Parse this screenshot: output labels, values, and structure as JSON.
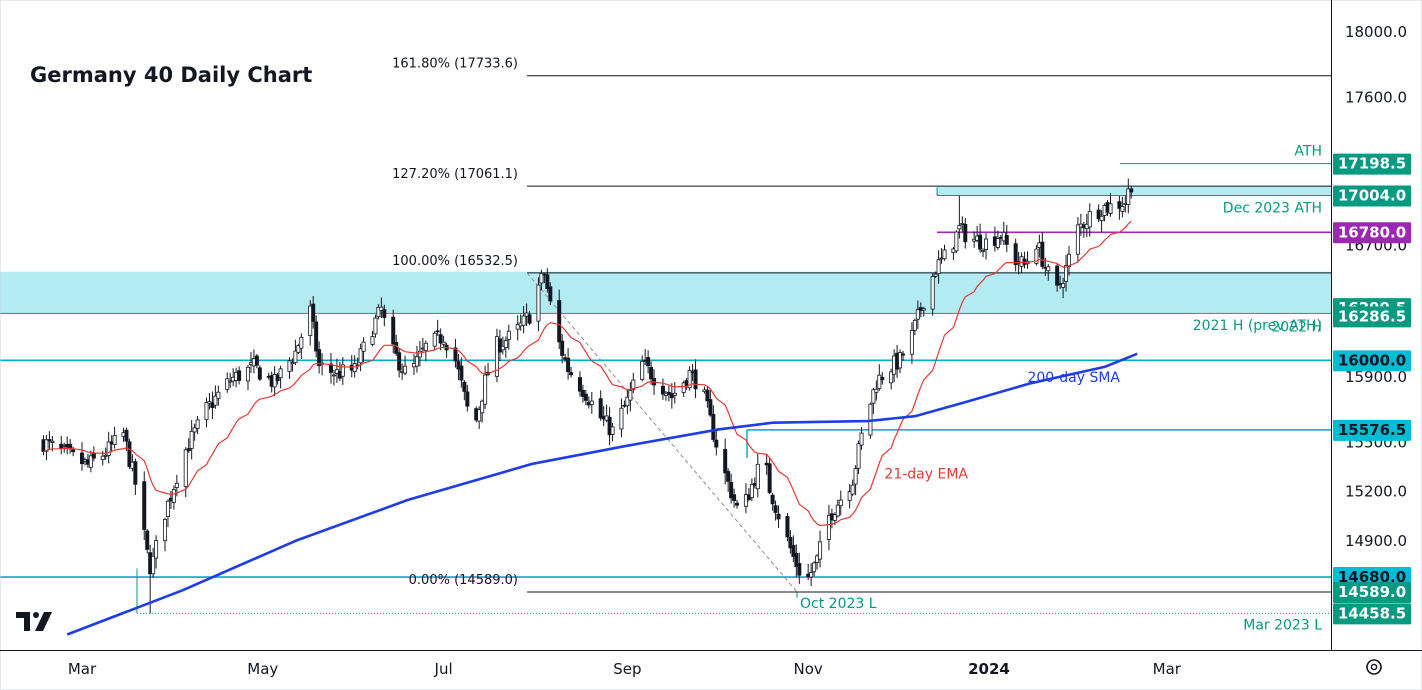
{
  "chart_data": {
    "type": "candlestick",
    "title": "Germany 40 Daily Chart",
    "y_range": [
      14330,
      18130
    ],
    "y_ticks": [
      {
        "value": 18000,
        "label": "18000.0"
      },
      {
        "value": 17600,
        "label": "17600.0"
      },
      {
        "value": 16700,
        "label": "16700.0"
      },
      {
        "value": 15900,
        "label": "15900.0"
      },
      {
        "value": 15500,
        "label": "15500.0"
      },
      {
        "value": 15200,
        "label": "15200.0"
      },
      {
        "value": 14900,
        "label": "14900.0"
      }
    ],
    "x_ticks": [
      {
        "label": "Mar",
        "bold": false,
        "day": 0
      },
      {
        "label": "May",
        "bold": false,
        "day": 61
      },
      {
        "label": "Jul",
        "bold": false,
        "day": 122
      },
      {
        "label": "Sep",
        "bold": false,
        "day": 184
      },
      {
        "label": "Nov",
        "bold": false,
        "day": 245
      },
      {
        "label": "2024",
        "bold": true,
        "day": 306
      },
      {
        "label": "Mar",
        "bold": false,
        "day": 366
      }
    ],
    "price_tags": [
      {
        "label": "17198.5",
        "value": 17198.5,
        "bg": "#089981",
        "fg": "#ffffff"
      },
      {
        "label": "17004.0",
        "value": 17004.0,
        "bg": "#089981",
        "fg": "#ffffff"
      },
      {
        "label": "16780.0",
        "value": 16780.0,
        "bg": "#9c27b0",
        "fg": "#ffffff"
      },
      {
        "label": "16299.5",
        "value": 16299.5,
        "bg": "#089981",
        "fg": "#ffffff"
      },
      {
        "label": "16286.5",
        "value": 16286.5,
        "bg": "#089981",
        "fg": "#ffffff"
      },
      {
        "label": "16000.0",
        "value": 16000.0,
        "bg": "#00bcd4",
        "fg": "#131722"
      },
      {
        "label": "15576.5",
        "value": 15576.5,
        "bg": "#00bcd4",
        "fg": "#131722"
      },
      {
        "label": "14680.0",
        "value": 14680.0,
        "bg": "#00bcd4",
        "fg": "#131722"
      },
      {
        "label": "14589.0",
        "value": 14589.0,
        "bg": "#089981",
        "fg": "#ffffff"
      },
      {
        "label": "14458.5",
        "value": 14458.5,
        "bg": "#089981",
        "fg": "#ffffff"
      }
    ],
    "fib_levels": [
      {
        "label": "161.80% (17733.6)",
        "value": 17733.6
      },
      {
        "label": "127.20% (17061.1)",
        "value": 17061.1
      },
      {
        "label": "100.00% (16532.5)",
        "value": 16532.5
      },
      {
        "label": "0.00% (14589.0)",
        "value": 14589.0
      }
    ],
    "zones": [
      {
        "from": 16290,
        "to": 16540,
        "color": "#b2ebf2"
      },
      {
        "from": 17005,
        "to": 17065,
        "color": "#b2ebf2"
      }
    ],
    "annotations": [
      {
        "text": "ATH",
        "color": "#089981"
      },
      {
        "text": "Dec 2023 ATH",
        "color": "#089981"
      },
      {
        "text": "2021 H (prev ATH)",
        "color": "#089981"
      },
      {
        "text": "2022 H",
        "color": "#089981"
      },
      {
        "text": "200-day SMA",
        "color": "#1e3de6"
      },
      {
        "text": "21-day EMA",
        "color": "#e53935"
      },
      {
        "text": "Oct 2023 L",
        "color": "#089981"
      },
      {
        "text": "Mar 2023 L",
        "color": "#089981"
      }
    ],
    "key_points": [
      {
        "day": -13,
        "close": 15500
      },
      {
        "day": 2,
        "close": 15360
      },
      {
        "day": 8,
        "close": 15440
      },
      {
        "day": 14,
        "close": 15550
      },
      {
        "day": 18,
        "close": 15250
      },
      {
        "day": 22,
        "close": 14820
      },
      {
        "day": 23,
        "close": 14700
      },
      {
        "day": 27,
        "close": 15020
      },
      {
        "day": 30,
        "close": 15180
      },
      {
        "day": 34,
        "close": 15420
      },
      {
        "day": 42,
        "close": 15700
      },
      {
        "day": 50,
        "close": 15880
      },
      {
        "day": 58,
        "close": 15960
      },
      {
        "day": 65,
        "close": 15860
      },
      {
        "day": 72,
        "close": 16050
      },
      {
        "day": 77,
        "close": 16300
      },
      {
        "day": 80,
        "close": 15960
      },
      {
        "day": 86,
        "close": 15920
      },
      {
        "day": 92,
        "close": 15940
      },
      {
        "day": 98,
        "close": 16200
      },
      {
        "day": 101,
        "close": 16310
      },
      {
        "day": 104,
        "close": 16080
      },
      {
        "day": 110,
        "close": 15900
      },
      {
        "day": 116,
        "close": 16080
      },
      {
        "day": 122,
        "close": 16150
      },
      {
        "day": 126,
        "close": 16000
      },
      {
        "day": 128,
        "close": 15850
      },
      {
        "day": 132,
        "close": 15560
      },
      {
        "day": 136,
        "close": 15870
      },
      {
        "day": 140,
        "close": 16090
      },
      {
        "day": 146,
        "close": 16160
      },
      {
        "day": 152,
        "close": 16300
      },
      {
        "day": 154,
        "close": 16450
      },
      {
        "day": 156,
        "close": 16530
      },
      {
        "day": 160,
        "close": 16150
      },
      {
        "day": 164,
        "close": 15950
      },
      {
        "day": 170,
        "close": 15800
      },
      {
        "day": 175,
        "close": 15650
      },
      {
        "day": 179,
        "close": 15570
      },
      {
        "day": 184,
        "close": 15750
      },
      {
        "day": 189,
        "close": 15980
      },
      {
        "day": 194,
        "close": 15880
      },
      {
        "day": 199,
        "close": 15780
      },
      {
        "day": 205,
        "close": 15920
      },
      {
        "day": 209,
        "close": 15840
      },
      {
        "day": 213,
        "close": 15560
      },
      {
        "day": 217,
        "close": 15300
      },
      {
        "day": 222,
        "close": 15050
      },
      {
        "day": 226,
        "close": 15240
      },
      {
        "day": 230,
        "close": 15420
      },
      {
        "day": 232,
        "close": 15220
      },
      {
        "day": 236,
        "close": 15010
      },
      {
        "day": 240,
        "close": 14800
      },
      {
        "day": 244,
        "close": 14640
      },
      {
        "day": 248,
        "close": 14780
      },
      {
        "day": 252,
        "close": 15050
      },
      {
        "day": 256,
        "close": 15160
      },
      {
        "day": 260,
        "close": 15280
      },
      {
        "day": 264,
        "close": 15620
      },
      {
        "day": 268,
        "close": 15870
      },
      {
        "day": 272,
        "close": 15950
      },
      {
        "day": 276,
        "close": 16000
      },
      {
        "day": 280,
        "close": 16150
      },
      {
        "day": 284,
        "close": 16370
      },
      {
        "day": 288,
        "close": 16560
      },
      {
        "day": 292,
        "close": 16650
      },
      {
        "day": 296,
        "close": 16800
      },
      {
        "day": 300,
        "close": 16740
      },
      {
        "day": 305,
        "close": 16720
      },
      {
        "day": 310,
        "close": 16770
      },
      {
        "day": 314,
        "close": 16620
      },
      {
        "day": 318,
        "close": 16580
      },
      {
        "day": 322,
        "close": 16720
      },
      {
        "day": 326,
        "close": 16520
      },
      {
        "day": 329,
        "close": 16420
      },
      {
        "day": 332,
        "close": 16560
      },
      {
        "day": 336,
        "close": 16800
      },
      {
        "day": 340,
        "close": 16880
      },
      {
        "day": 344,
        "close": 16930
      },
      {
        "day": 348,
        "close": 16940
      },
      {
        "day": 352,
        "close": 16970
      },
      {
        "day": 356,
        "close": 17190
      }
    ]
  }
}
